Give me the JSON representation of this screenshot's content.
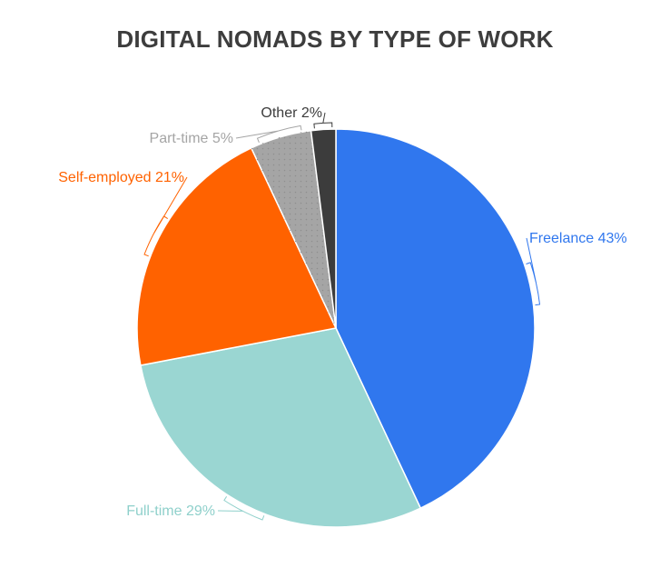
{
  "chart_data": {
    "type": "pie",
    "title": "DIGITAL NOMADS BY TYPE OF WORK",
    "slices": [
      {
        "name": "Freelance",
        "value": 43,
        "label": "Freelance 43%",
        "color": "#3077ee",
        "label_color": "#3077ee"
      },
      {
        "name": "Full-time",
        "value": 29,
        "label": "Full-time 29%",
        "color": "#9ad6d2",
        "label_color": "#8fd0cb"
      },
      {
        "name": "Self-employed",
        "value": 21,
        "label": "Self-employed 21%",
        "color": "#ff6200",
        "label_color": "#ff6200"
      },
      {
        "name": "Part-time",
        "value": 5,
        "label": "Part-time 5%",
        "color": "#a5a5a5",
        "label_color": "#a5a5a5"
      },
      {
        "name": "Other",
        "value": 2,
        "label": "Other 2%",
        "color": "#3c3c3c",
        "label_color": "#3c3c3c"
      }
    ],
    "start": "top",
    "direction": "clockwise",
    "legend": "none"
  }
}
